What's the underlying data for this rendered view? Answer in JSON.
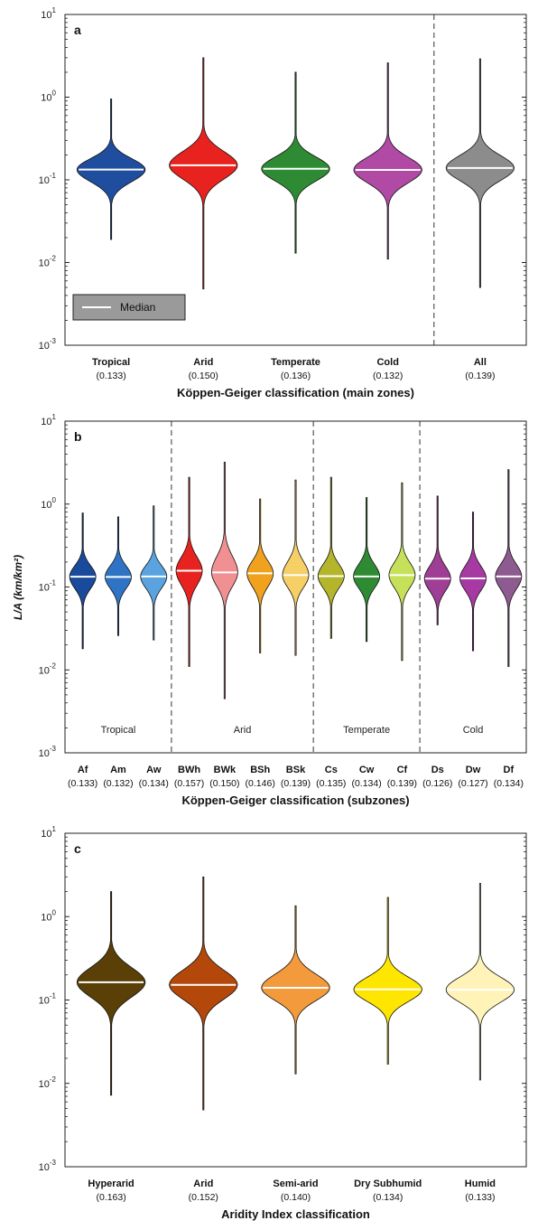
{
  "ylabel": "L/A (km/km²)",
  "chart_data": [
    {
      "type": "violin",
      "panel": "a",
      "xlabel": "Köppen-Geiger classification (main zones)",
      "y_scale": "log",
      "ylim": [
        0.001,
        10
      ],
      "y_ticks": [
        {
          "base": "10",
          "exp": "-3",
          "value": 0.001
        },
        {
          "base": "10",
          "exp": "-2",
          "value": 0.01
        },
        {
          "base": "10",
          "exp": "-1",
          "value": 0.1
        },
        {
          "base": "10",
          "exp": "0",
          "value": 1
        },
        {
          "base": "10",
          "exp": "1",
          "value": 10
        }
      ],
      "legend": {
        "label": "Median",
        "placement": "bottom-left"
      },
      "separators_after": [
        3
      ],
      "categories": [
        {
          "name": "Tropical",
          "median_label": "(0.133)",
          "median": 0.133,
          "min": 0.019,
          "max": 0.95,
          "q_low": 0.085,
          "q_high": 0.2,
          "color": "#1f4e9e"
        },
        {
          "name": "Arid",
          "median_label": "(0.150)",
          "median": 0.15,
          "min": 0.0048,
          "max": 3.0,
          "q_low": 0.09,
          "q_high": 0.25,
          "color": "#e8231f"
        },
        {
          "name": "Temperate",
          "median_label": "(0.136)",
          "median": 0.136,
          "min": 0.013,
          "max": 2.0,
          "q_low": 0.087,
          "q_high": 0.21,
          "color": "#2e8b34"
        },
        {
          "name": "Cold",
          "median_label": "(0.132)",
          "median": 0.132,
          "min": 0.011,
          "max": 2.6,
          "q_low": 0.082,
          "q_high": 0.21,
          "color": "#b04aa5"
        },
        {
          "name": "All",
          "median_label": "(0.139)",
          "median": 0.139,
          "min": 0.005,
          "max": 2.9,
          "q_low": 0.088,
          "q_high": 0.22,
          "color": "#8c8c8c"
        }
      ]
    },
    {
      "type": "violin",
      "panel": "b",
      "xlabel": "Köppen-Geiger classification (subzones)",
      "y_scale": "log",
      "ylim": [
        0.001,
        10
      ],
      "y_ticks": [
        {
          "base": "10",
          "exp": "-3",
          "value": 0.001
        },
        {
          "base": "10",
          "exp": "-2",
          "value": 0.01
        },
        {
          "base": "10",
          "exp": "-1",
          "value": 0.1
        },
        {
          "base": "10",
          "exp": "0",
          "value": 1
        },
        {
          "base": "10",
          "exp": "1",
          "value": 10
        }
      ],
      "separators_after": [
        2,
        6,
        9
      ],
      "groups": [
        {
          "label": "Tropical",
          "start": 0,
          "end": 2
        },
        {
          "label": "Arid",
          "start": 3,
          "end": 6
        },
        {
          "label": "Temperate",
          "start": 7,
          "end": 9
        },
        {
          "label": "Cold",
          "start": 10,
          "end": 12
        }
      ],
      "categories": [
        {
          "name": "Af",
          "median_label": "(0.133)",
          "median": 0.133,
          "min": 0.018,
          "max": 0.78,
          "q_low": 0.086,
          "q_high": 0.2,
          "color": "#1a4a9c"
        },
        {
          "name": "Am",
          "median_label": "(0.132)",
          "median": 0.132,
          "min": 0.026,
          "max": 0.7,
          "q_low": 0.086,
          "q_high": 0.2,
          "color": "#2f74c4"
        },
        {
          "name": "Aw",
          "median_label": "(0.134)",
          "median": 0.134,
          "min": 0.023,
          "max": 0.95,
          "q_low": 0.087,
          "q_high": 0.2,
          "color": "#5aa3de"
        },
        {
          "name": "BWh",
          "median_label": "(0.157)",
          "median": 0.157,
          "min": 0.011,
          "max": 2.1,
          "q_low": 0.093,
          "q_high": 0.26,
          "color": "#e8231f"
        },
        {
          "name": "BWk",
          "median_label": "(0.150)",
          "median": 0.15,
          "min": 0.0045,
          "max": 3.2,
          "q_low": 0.09,
          "q_high": 0.27,
          "color": "#f09092"
        },
        {
          "name": "BSh",
          "median_label": "(0.146)",
          "median": 0.146,
          "min": 0.016,
          "max": 1.15,
          "q_low": 0.09,
          "q_high": 0.23,
          "color": "#f0a21e"
        },
        {
          "name": "BSk",
          "median_label": "(0.139)",
          "median": 0.139,
          "min": 0.015,
          "max": 1.95,
          "q_low": 0.088,
          "q_high": 0.23,
          "color": "#f6cf66"
        },
        {
          "name": "Cs",
          "median_label": "(0.135)",
          "median": 0.135,
          "min": 0.024,
          "max": 2.1,
          "q_low": 0.087,
          "q_high": 0.21,
          "color": "#b4b52a"
        },
        {
          "name": "Cw",
          "median_label": "(0.134)",
          "median": 0.134,
          "min": 0.022,
          "max": 1.2,
          "q_low": 0.087,
          "q_high": 0.21,
          "color": "#2e8b34"
        },
        {
          "name": "Cf",
          "median_label": "(0.139)",
          "median": 0.139,
          "min": 0.013,
          "max": 1.8,
          "q_low": 0.088,
          "q_high": 0.22,
          "color": "#c6e05a"
        },
        {
          "name": "Ds",
          "median_label": "(0.126)",
          "median": 0.126,
          "min": 0.035,
          "max": 1.25,
          "q_low": 0.08,
          "q_high": 0.2,
          "color": "#9e3e94"
        },
        {
          "name": "Dw",
          "median_label": "(0.127)",
          "median": 0.127,
          "min": 0.017,
          "max": 0.8,
          "q_low": 0.081,
          "q_high": 0.2,
          "color": "#a63aa2"
        },
        {
          "name": "Df",
          "median_label": "(0.134)",
          "median": 0.134,
          "min": 0.011,
          "max": 2.6,
          "q_low": 0.084,
          "q_high": 0.21,
          "color": "#8e5b90"
        }
      ]
    },
    {
      "type": "violin",
      "panel": "c",
      "xlabel": "Aridity Index classification",
      "y_scale": "log",
      "ylim": [
        0.001,
        10
      ],
      "y_ticks": [
        {
          "base": "10",
          "exp": "-3",
          "value": 0.001
        },
        {
          "base": "10",
          "exp": "-2",
          "value": 0.01
        },
        {
          "base": "10",
          "exp": "-1",
          "value": 0.1
        },
        {
          "base": "10",
          "exp": "0",
          "value": 1
        },
        {
          "base": "10",
          "exp": "1",
          "value": 10
        }
      ],
      "separators_after": [],
      "categories": [
        {
          "name": "Hyperarid",
          "median_label": "(0.163)",
          "median": 0.163,
          "min": 0.0072,
          "max": 2.0,
          "q_low": 0.095,
          "q_high": 0.28,
          "color": "#5a3f06"
        },
        {
          "name": "Arid",
          "median_label": "(0.152)",
          "median": 0.152,
          "min": 0.0048,
          "max": 3.0,
          "q_low": 0.09,
          "q_high": 0.26,
          "color": "#b3480a"
        },
        {
          "name": "Semi-arid",
          "median_label": "(0.140)",
          "median": 0.14,
          "min": 0.013,
          "max": 1.35,
          "q_low": 0.088,
          "q_high": 0.23,
          "color": "#f29a3c"
        },
        {
          "name": "Dry Subhumid",
          "median_label": "(0.134)",
          "median": 0.134,
          "min": 0.017,
          "max": 1.7,
          "q_low": 0.086,
          "q_high": 0.21,
          "color": "#ffe600"
        },
        {
          "name": "Humid",
          "median_label": "(0.133)",
          "median": 0.133,
          "min": 0.011,
          "max": 2.5,
          "q_low": 0.084,
          "q_high": 0.21,
          "color": "#fff3b8"
        }
      ]
    }
  ]
}
